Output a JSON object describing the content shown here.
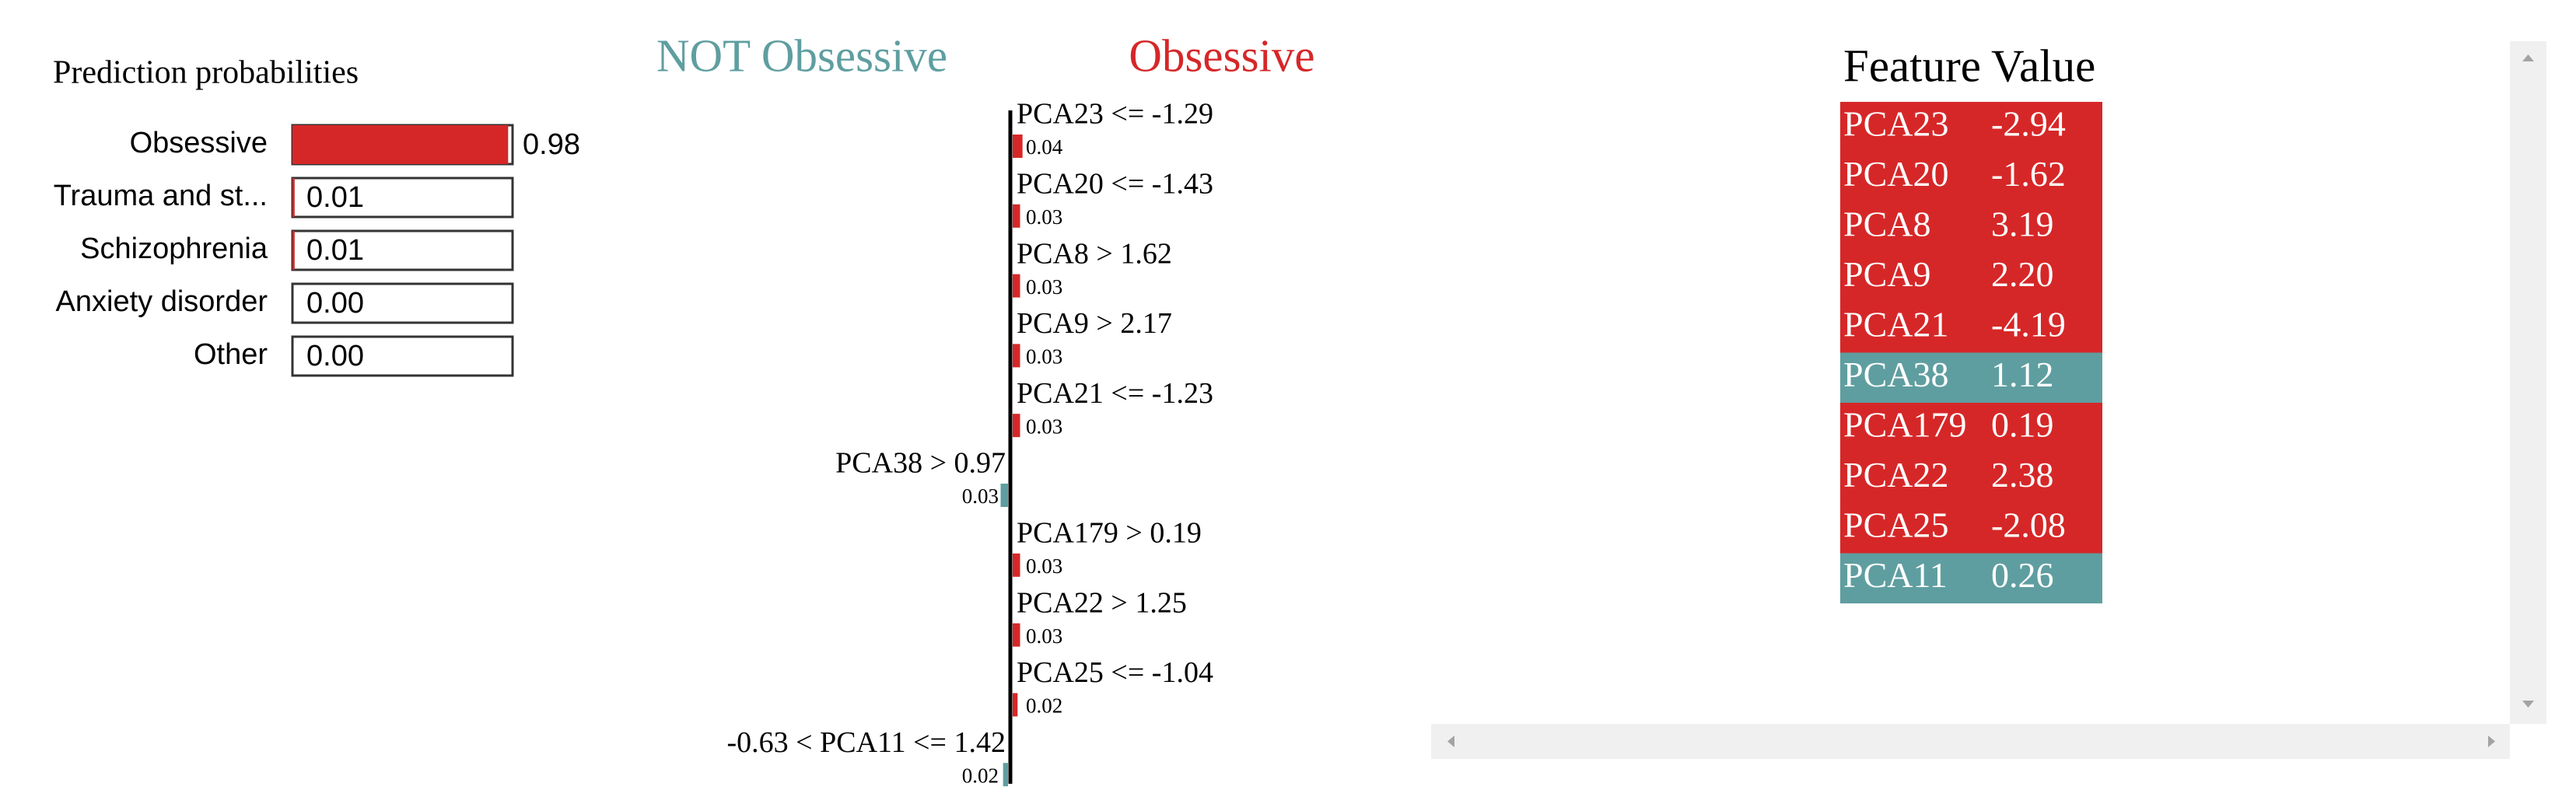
{
  "prediction_probabilities": {
    "title": "Prediction probabilities",
    "color": "#d62728",
    "classes": [
      "Obsessive",
      "Trauma and st...",
      "Schizophrenia",
      "Anxiety disorder",
      "Other"
    ],
    "values": [
      0.98,
      0.01,
      0.01,
      0,
      0
    ],
    "value_labels": [
      "0.98",
      "0.01",
      "0.01",
      "0.00",
      "0.00"
    ]
  },
  "explanation": {
    "negative_label": "NOT Obsessive",
    "positive_label": "Obsessive",
    "negative_color": "#5f9ea0",
    "positive_color": "#d62728",
    "features": [
      {
        "label": "PCA23 <= -1.29",
        "weight": 0.04,
        "color": "#d62728"
      },
      {
        "label": "PCA20 <= -1.43",
        "weight": 0.03,
        "color": "#d62728"
      },
      {
        "label": "PCA8 > 1.62",
        "weight": 0.03,
        "color": "#d62728"
      },
      {
        "label": "PCA9 > 2.17",
        "weight": 0.03,
        "color": "#d62728"
      },
      {
        "label": "PCA21 <= -1.23",
        "weight": 0.03,
        "color": "#d62728"
      },
      {
        "label": "PCA38 > 0.97",
        "weight": 0.03,
        "color": "#5f9ea0"
      },
      {
        "label": "PCA179 > 0.19",
        "weight": 0.03,
        "color": "#d62728"
      },
      {
        "label": "PCA22 > 1.25",
        "weight": 0.03,
        "color": "#d62728"
      },
      {
        "label": "PCA25 <= -1.04",
        "weight": 0.02,
        "color": "#d62728"
      },
      {
        "label": "-0.63 < PCA11 <= 1.42",
        "weight": 0.02,
        "color": "#5f9ea0"
      }
    ]
  },
  "table": {
    "headers": [
      "Feature",
      "Value"
    ],
    "rows": [
      {
        "cells": [
          "PCA23",
          "-2.94"
        ],
        "color": "#d62728"
      },
      {
        "cells": [
          "PCA20",
          "-1.62"
        ],
        "color": "#d62728"
      },
      {
        "cells": [
          "PCA8",
          "3.19"
        ],
        "color": "#d62728"
      },
      {
        "cells": [
          "PCA9",
          "2.20"
        ],
        "color": "#d62728"
      },
      {
        "cells": [
          "PCA21",
          "-4.19"
        ],
        "color": "#d62728"
      },
      {
        "cells": [
          "PCA38",
          "1.12"
        ],
        "color": "#5f9ea0"
      },
      {
        "cells": [
          "PCA179",
          "0.19"
        ],
        "color": "#d62728"
      },
      {
        "cells": [
          "PCA22",
          "2.38"
        ],
        "color": "#d62728"
      },
      {
        "cells": [
          "PCA25",
          "-2.08"
        ],
        "color": "#d62728"
      },
      {
        "cells": [
          "PCA11",
          "0.26"
        ],
        "color": "#5f9ea0"
      }
    ]
  }
}
